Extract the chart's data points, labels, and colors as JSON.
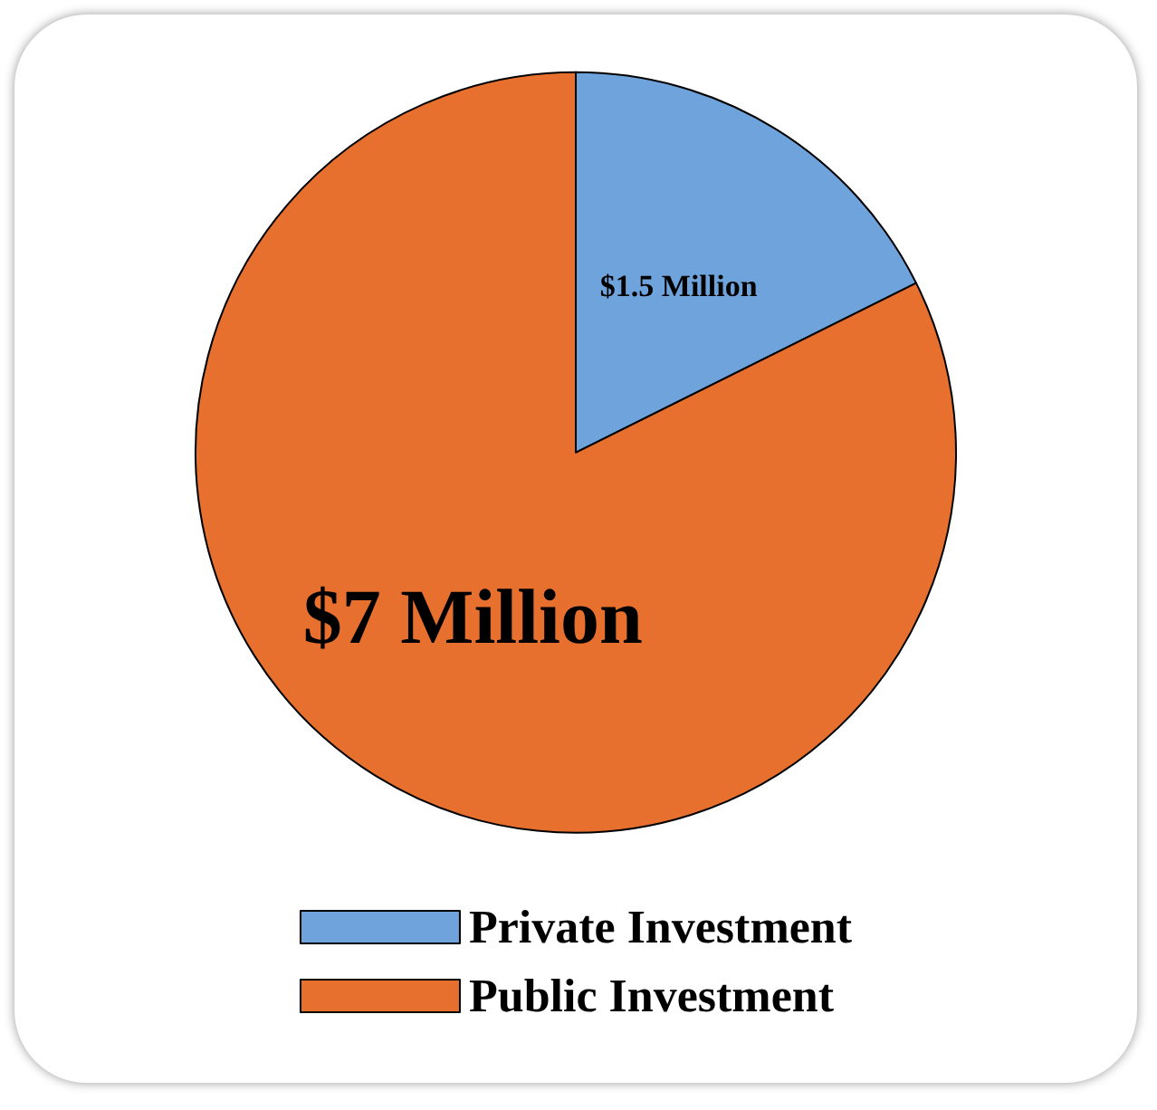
{
  "chart_data": {
    "type": "pie",
    "categories": [
      "Private Investment",
      "Public Investment"
    ],
    "values": [
      1.5,
      7
    ],
    "colors": [
      "#6fa3db",
      "#e8702f"
    ],
    "value_labels": [
      "$1.5 Million",
      "$7 Million"
    ],
    "legend": "bottom"
  }
}
